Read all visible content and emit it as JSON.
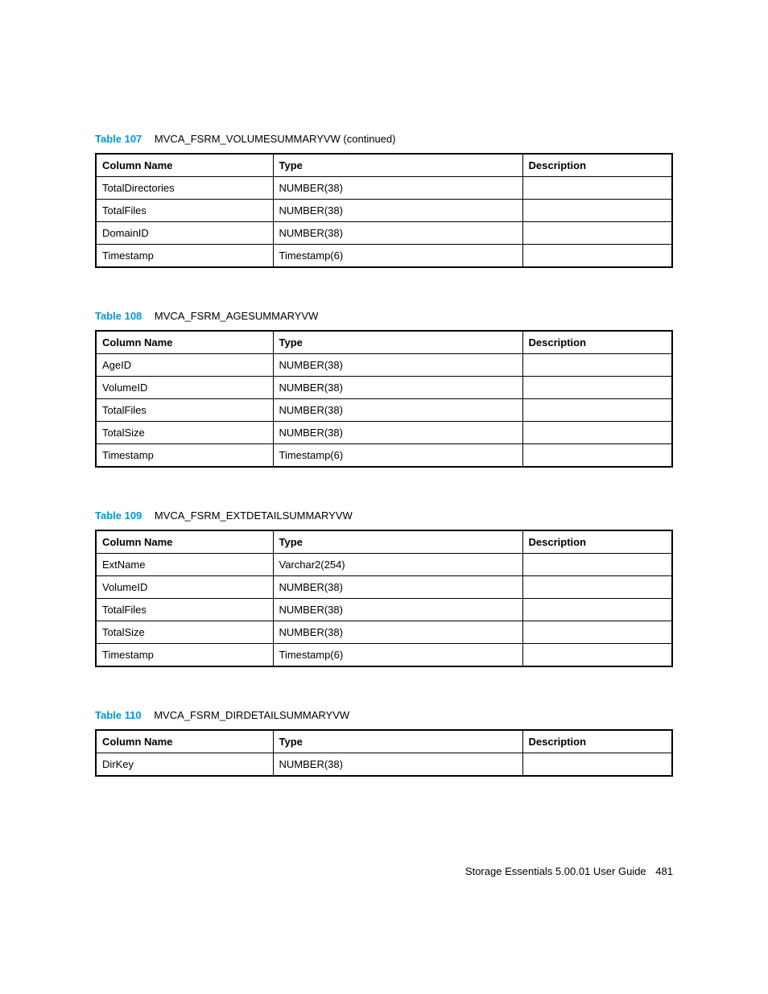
{
  "tables": [
    {
      "caption_label": "Table 107",
      "caption_title": "MVCA_FSRM_VOLUMESUMMARYVW (continued)",
      "headers": [
        "Column Name",
        "Type",
        "Description"
      ],
      "rows": [
        [
          "TotalDirectories",
          "NUMBER(38)",
          ""
        ],
        [
          "TotalFiles",
          "NUMBER(38)",
          ""
        ],
        [
          "DomainID",
          "NUMBER(38)",
          ""
        ],
        [
          "Timestamp",
          "Timestamp(6)",
          ""
        ]
      ]
    },
    {
      "caption_label": "Table 108",
      "caption_title": "MVCA_FSRM_AGESUMMARYVW",
      "headers": [
        "Column Name",
        "Type",
        "Description"
      ],
      "rows": [
        [
          "AgeID",
          "NUMBER(38)",
          ""
        ],
        [
          "VolumeID",
          "NUMBER(38)",
          ""
        ],
        [
          "TotalFiles",
          "NUMBER(38)",
          ""
        ],
        [
          "TotalSize",
          "NUMBER(38)",
          ""
        ],
        [
          "Timestamp",
          "Timestamp(6)",
          ""
        ]
      ]
    },
    {
      "caption_label": "Table 109",
      "caption_title": "MVCA_FSRM_EXTDETAILSUMMARYVW",
      "headers": [
        "Column Name",
        "Type",
        "Description"
      ],
      "rows": [
        [
          "ExtName",
          "Varchar2(254)",
          ""
        ],
        [
          "VolumeID",
          "NUMBER(38)",
          ""
        ],
        [
          "TotalFiles",
          "NUMBER(38)",
          ""
        ],
        [
          "TotalSize",
          "NUMBER(38)",
          ""
        ],
        [
          "Timestamp",
          "Timestamp(6)",
          ""
        ]
      ]
    },
    {
      "caption_label": "Table 110",
      "caption_title": "MVCA_FSRM_DIRDETAILSUMMARYVW",
      "headers": [
        "Column Name",
        "Type",
        "Description"
      ],
      "rows": [
        [
          "DirKey",
          "NUMBER(38)",
          ""
        ]
      ]
    }
  ],
  "footer": {
    "title": "Storage Essentials 5.00.01 User Guide",
    "page": "481"
  }
}
